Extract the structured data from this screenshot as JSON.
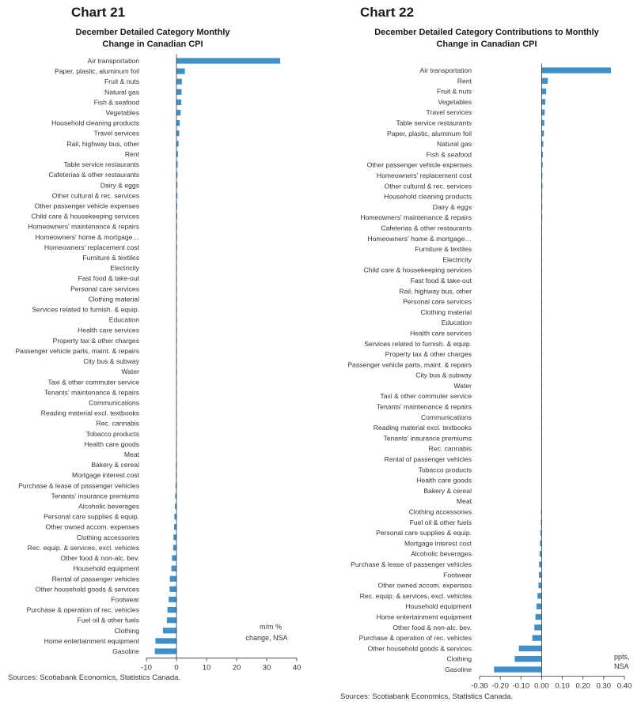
{
  "charts": [
    {
      "number": "Chart 21",
      "title_line1": "December Detailed Category Monthly",
      "title_line2": "Change in Canadian CPI",
      "source": "Sources: Scotiabank Economics, Statistics Canada.",
      "unit_line1": "m/m %",
      "unit_line2": "change, NSA"
    },
    {
      "number": "Chart 22",
      "title_line1": "December Detailed Category Contributions to Monthly",
      "title_line2": "Change in Canadian CPI",
      "source": "Sources: Scotiabank Economics, Statistics Canada.",
      "unit_line1": "ppts,",
      "unit_line2": "NSA"
    }
  ],
  "chart_data": [
    {
      "type": "bar",
      "orientation": "horizontal",
      "title": "December Detailed Category Monthly Change in Canadian CPI",
      "xlabel": "m/m % change, NSA",
      "xlim": [
        -10,
        40
      ],
      "xticks": [
        -10,
        0,
        10,
        20,
        30,
        40
      ],
      "bar_color": "#3f8fc9",
      "categories": [
        "Air transportation",
        "Paper, plastic, aluminum foil",
        "Fruit & nuts",
        "Natural gas",
        "Fish & seafood",
        "Vegetables",
        "Household cleaning products",
        "Travel services",
        "Rail, highway bus, other",
        "Rent",
        "Table service restaurants",
        "Cafeterias & other restaurants",
        "Dairy & eggs",
        "Other cultural & rec. services",
        "Other passenger vehicle expenses",
        "Child care & housekeeping services",
        "Homeowners' maintenance & repairs",
        "Homeowners' home & mortgage…",
        "Homeowners' replacement cost",
        "Furniture & textiles",
        "Electricity",
        "Fast food & take-out",
        "Personal care services",
        "Clothing material",
        "Services related to furnish. & equip.",
        "Education",
        "Health care services",
        "Property tax & other charges",
        "Passenger vehicle parts, maint. & repairs",
        "City bus & subway",
        "Water",
        "Taxi & other commuter service",
        "Tenants' maintenance & repairs",
        "Communications",
        "Reading material excl. textbooks",
        "Rec. cannabis",
        "Tobacco products",
        "Health care goods",
        "Meat",
        "Bakery & cereal",
        "Mortgage interest cost",
        "Purchase & lease of passenger vehicles",
        "Tenants' insurance premiums",
        "Alcoholic beverages",
        "Personal care supplies & equip.",
        "Other owned accom. expenses",
        "Clothing accessories",
        "Rec. equip. & services, excl. vehicles",
        "Other food & non-alc. bev.",
        "Household equipment",
        "Rental of passenger vehicles",
        "Other household goods & services",
        "Footwear",
        "Purchase & operation of rec. vehicles",
        "Fuel oil & other fuels",
        "Clothing",
        "Home entertainment equipment",
        "Gasoline"
      ],
      "values": [
        34.5,
        2.8,
        1.8,
        1.7,
        1.6,
        1.4,
        1.1,
        0.9,
        0.7,
        0.5,
        0.4,
        0.35,
        0.3,
        0.3,
        0.25,
        0.25,
        0.2,
        0.2,
        0.2,
        0.15,
        0.15,
        0.1,
        0.1,
        0.1,
        0.05,
        0.05,
        0.05,
        0.0,
        0.0,
        0.0,
        0.0,
        -0.05,
        -0.05,
        -0.05,
        -0.1,
        -0.1,
        -0.1,
        -0.15,
        -0.15,
        -0.2,
        -0.2,
        -0.3,
        -0.4,
        -0.5,
        -0.7,
        -0.8,
        -1.0,
        -1.1,
        -1.5,
        -1.7,
        -2.2,
        -2.3,
        -2.6,
        -3.0,
        -3.2,
        -4.5,
        -7.0,
        -7.2
      ]
    },
    {
      "type": "bar",
      "orientation": "horizontal",
      "title": "December Detailed Category Contributions to Monthly Change in Canadian CPI",
      "xlabel": "ppts, NSA",
      "xlim": [
        -0.3,
        0.4
      ],
      "xticks": [
        -0.3,
        -0.2,
        -0.1,
        0.0,
        0.1,
        0.2,
        0.3,
        0.4
      ],
      "xtick_labels": [
        "-0.30",
        "-0.20",
        "-0.10",
        "0.00",
        "0.10",
        "0.20",
        "0.30",
        "0.40"
      ],
      "bar_color": "#3f8fc9",
      "categories": [
        "Air transportation",
        "Rent",
        "Fruit & nuts",
        "Vegetables",
        "Travel services",
        "Table service restaurants",
        "Paper, plastic, aluminum foil",
        "Natural gas",
        "Fish & seafood",
        "Other passenger vehicle expenses",
        "Homeowners' replacement cost",
        "Other cultural & rec. services",
        "Household cleaning products",
        "Dairy & eggs",
        "Homeowners' maintenance & repairs",
        "Cafeterias & other restaurants",
        "Homeowners' home & mortgage…",
        "Furniture & textiles",
        "Electricity",
        "Child care & housekeeping services",
        "Fast food & take-out",
        "Rail, highway bus, other",
        "Personal care services",
        "Clothing material",
        "Education",
        "Health care services",
        "Services related to furnish. & equip.",
        "Property tax & other charges",
        "Passenger vehicle parts, maint. & repairs",
        "City bus & subway",
        "Water",
        "Taxi & other commuter service",
        "Tenants' maintenance & repairs",
        "Communications",
        "Reading material excl. textbooks",
        "Tenants' insurance premiums",
        "Rec. cannabis",
        "Rental of passenger vehicles",
        "Tobacco products",
        "Health care goods",
        "Bakery & cereal",
        "Meat",
        "Clothing accessories",
        "Fuel oil & other fuels",
        "Personal care supplies & equip.",
        "Mortgage interest cost",
        "Alcoholic beverages",
        "Purchase & lease of passenger vehicles",
        "Footwear",
        "Other owned accom. expenses",
        "Rec. equip. & services, excl. vehicles",
        "Household equipment",
        "Home entertainment equipment",
        "Other food & non-alc. bev.",
        "Purchase & operation of rec. vehicles",
        "Other household goods & services",
        "Clothing",
        "Gasoline"
      ],
      "values": [
        0.335,
        0.03,
        0.022,
        0.018,
        0.015,
        0.013,
        0.011,
        0.008,
        0.006,
        0.005,
        0.004,
        0.004,
        0.003,
        0.003,
        0.003,
        0.002,
        0.002,
        0.002,
        0.002,
        0.001,
        0.001,
        0.001,
        0.001,
        0.001,
        0.0,
        0.0,
        0.0,
        0.0,
        0.0,
        0.0,
        0.0,
        0.0,
        0.0,
        0.0,
        0.0,
        0.0,
        -0.001,
        -0.001,
        -0.001,
        -0.001,
        -0.002,
        -0.002,
        -0.003,
        -0.004,
        -0.006,
        -0.008,
        -0.01,
        -0.012,
        -0.013,
        -0.015,
        -0.02,
        -0.025,
        -0.03,
        -0.035,
        -0.045,
        -0.11,
        -0.13,
        -0.23
      ]
    }
  ]
}
